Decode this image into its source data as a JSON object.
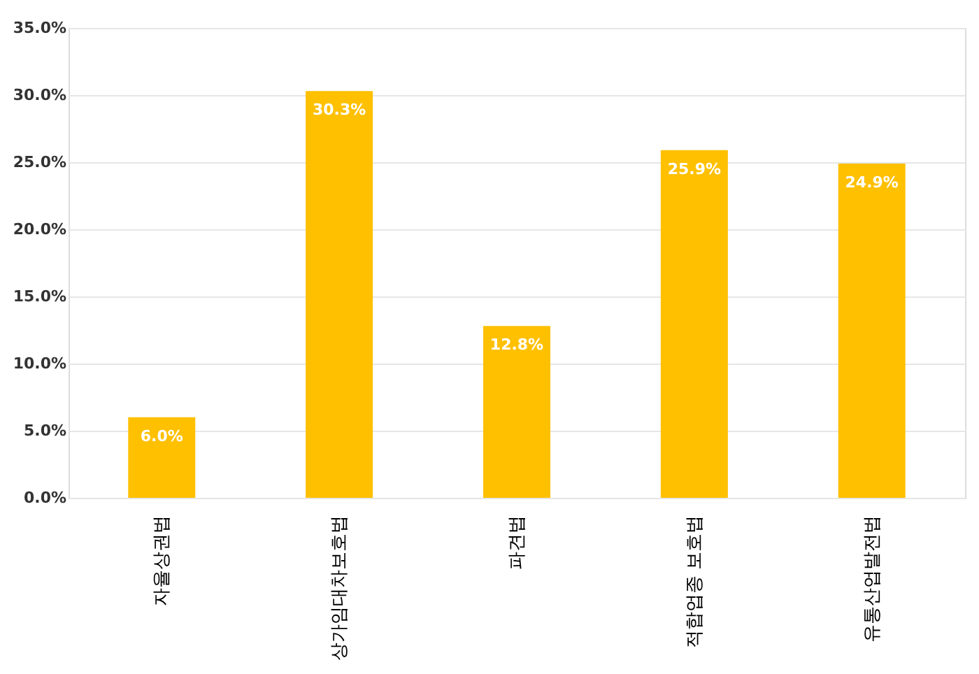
{
  "chart_data": {
    "type": "bar",
    "categories": [
      "자율상권법",
      "상가임대차보호법",
      "파견법",
      "적합업종 보호법",
      "유통산업발전법"
    ],
    "values": [
      6.0,
      30.3,
      12.8,
      25.9,
      24.9
    ],
    "color": "#ffc000",
    "value_labels": [
      "6.0%",
      "30.3%",
      "12.8%",
      "25.9%",
      "24.9%"
    ],
    "ylim": [
      0,
      35
    ],
    "yticks": [
      {
        "value": 0,
        "label": "0.0%"
      },
      {
        "value": 5,
        "label": "5.0%"
      },
      {
        "value": 10,
        "label": "10.0%"
      },
      {
        "value": 15,
        "label": "15.0%"
      },
      {
        "value": 20,
        "label": "20.0%"
      },
      {
        "value": 25,
        "label": "25.0%"
      },
      {
        "value": 30,
        "label": "30.0%"
      },
      {
        "value": 35,
        "label": "35.0%"
      }
    ],
    "grid": "y"
  }
}
